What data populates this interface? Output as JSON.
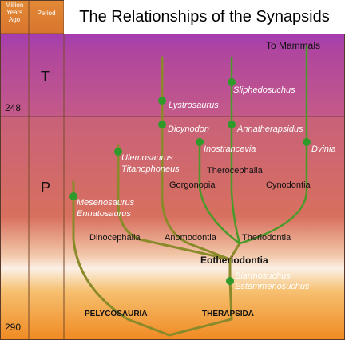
{
  "header": {
    "column1": "Million Years Ago",
    "column2": "Period",
    "title": "The Relationships of the Synapsids"
  },
  "periods": {
    "triassic": "T",
    "permian": "P"
  },
  "ages": {
    "boundary": "248",
    "bottom": "290"
  },
  "labels": {
    "to_mammals": "To Mammals",
    "therocephalia": "Therocephalia",
    "gorgonopia": "Gorgonopia",
    "cynodontia": "Cynodontia",
    "dinocephalia": "Dinocephalia",
    "anomodontia": "Anomodontia",
    "theriodontia": "Theriodontia",
    "eotheriodontia": "Eotheriodontia",
    "pelycosauria": "PELYCOSAURIA",
    "therapsida": "THERAPSIDA"
  },
  "taxa": {
    "lystrosaurus": "Lystrosaurus",
    "sliphedosuchus": "Sliphedosuchus",
    "dicynodon": "Dicynodon",
    "annatherapsidus": "Annatherapsidus",
    "inostrancevia": "Inostrancevia",
    "dvinia": "Dvinia",
    "ulemosaurus": "Ulemosaurus",
    "titanophoneus": "Titanophoneus",
    "mesenosaurus": "Mesenosaurus",
    "ennatosaurus": "Ennatosaurus",
    "biarmosuchus": "Biarmosuchus",
    "estemmenosuchus": "Estemmenosuchus"
  },
  "colors": {
    "triassic_top": "#8f2bd6",
    "triassic_bottom": "#c45a88",
    "permian_top": "#c8617a",
    "permian_mid": "#e27e5a",
    "permian_bottom": "#f08a22",
    "branch": "#3f8f2c",
    "node": "#2f9a2a",
    "stem": "#8a8a2a"
  }
}
